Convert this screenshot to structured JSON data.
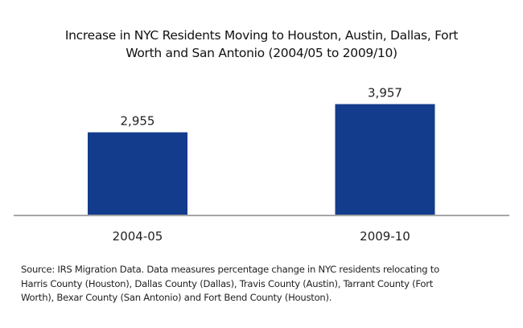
{
  "chart_data": {
    "type": "bar",
    "title_lines": [
      "Increase in NYC Residents Moving to Houston, Austin, Dallas, Fort",
      "Worth and San Antonio (2004/05 to 2009/10)"
    ],
    "title": "Increase in NYC Residents Moving to Houston, Austin, Dallas, Fort Worth and San Antonio (2004/05 to 2009/10)",
    "categories": [
      "2004-05",
      "2009-10"
    ],
    "values": [
      2955,
      3957
    ],
    "data_labels": [
      "2,955",
      "3,957"
    ],
    "xlabel": "",
    "ylabel": "",
    "ylim": [
      0,
      4000
    ],
    "y_axis_visible": false,
    "grid": false,
    "legend": "none",
    "bar_color": "#143C8C",
    "axis_color": "#A6A6A6"
  },
  "source_lines": [
    "Source: IRS Migration Data. Data measures percentage change in NYC residents relocating to",
    "Harris County (Houston), Dallas County (Dallas), Travis County (Austin), Tarrant County (Fort",
    "Worth), Bexar County (San Antonio) and Fort Bend County (Houston)."
  ]
}
